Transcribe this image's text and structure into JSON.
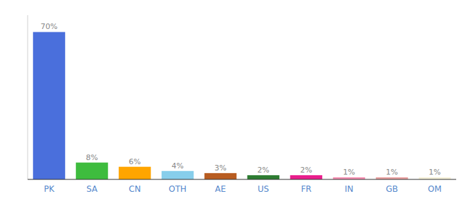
{
  "chart_data": {
    "type": "bar",
    "categories": [
      "PK",
      "SA",
      "CN",
      "OTH",
      "AE",
      "US",
      "FR",
      "IN",
      "GB",
      "OM"
    ],
    "values": [
      70,
      8,
      6,
      4,
      3,
      2,
      2,
      1,
      1,
      1
    ],
    "value_labels": [
      "70%",
      "8%",
      "6%",
      "4%",
      "3%",
      "2%",
      "2%",
      "1%",
      "1%",
      "1%"
    ],
    "colors": [
      "#4a6fdc",
      "#3ebc3e",
      "#ffa500",
      "#87ceeb",
      "#b85c20",
      "#2e7d32",
      "#e91e8c",
      "#f48fb1",
      "#e8a0a0",
      "#f5f0d8"
    ],
    "ylim": [
      0,
      78
    ],
    "data_labels": true,
    "tick_labels": "x",
    "grid": false
  }
}
